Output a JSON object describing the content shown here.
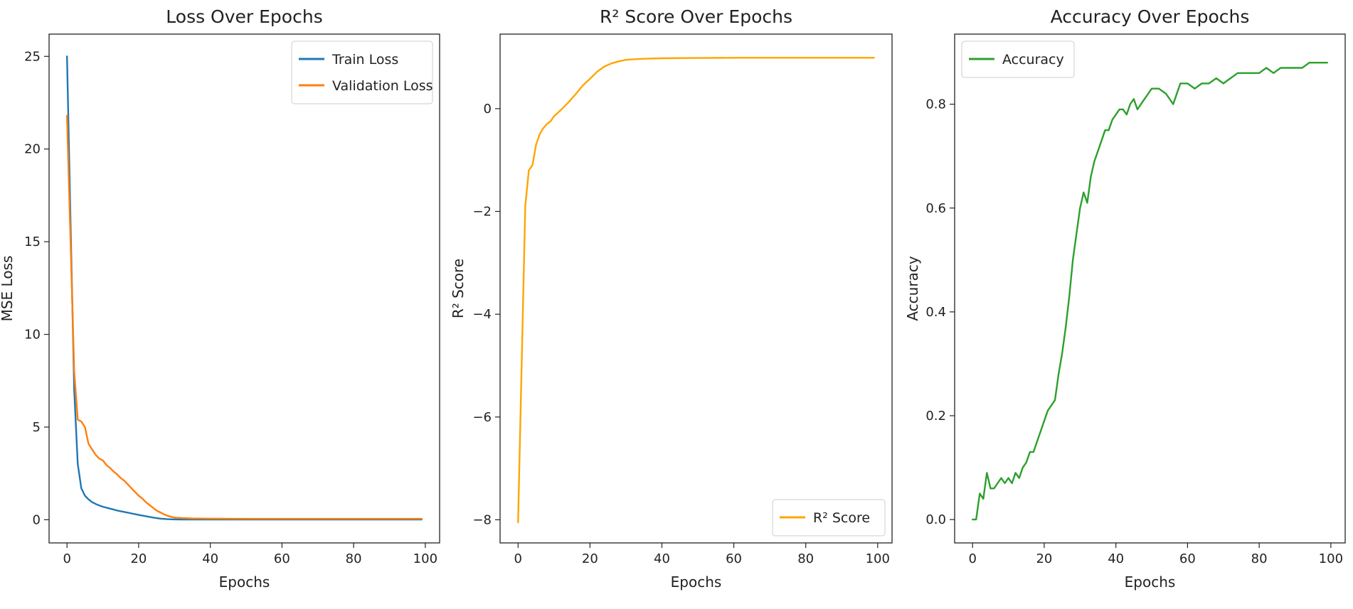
{
  "charts": [
    {
      "title": "Loss Over Epochs",
      "xlabel": "Epochs",
      "ylabel": "MSE Loss",
      "xticks": [
        "0",
        "20",
        "40",
        "60",
        "80",
        "100"
      ],
      "yticks": [
        "0",
        "5",
        "10",
        "15",
        "20",
        "25"
      ],
      "legend": [
        "Train Loss",
        "Validation Loss"
      ]
    },
    {
      "title": "R² Score Over Epochs",
      "xlabel": "Epochs",
      "ylabel": "R² Score",
      "xticks": [
        "0",
        "20",
        "40",
        "60",
        "80",
        "100"
      ],
      "yticks": [
        "0",
        "−2",
        "−4",
        "−6",
        "−8"
      ],
      "legend": [
        "R² Score"
      ]
    },
    {
      "title": "Accuracy Over Epochs",
      "xlabel": "Epochs",
      "ylabel": "Accuracy",
      "xticks": [
        "0",
        "20",
        "40",
        "60",
        "80",
        "100"
      ],
      "yticks": [
        "0.0",
        "0.2",
        "0.4",
        "0.6",
        "0.8"
      ],
      "legend": [
        "Accuracy"
      ]
    }
  ],
  "chart_data": [
    {
      "type": "line",
      "title": "Loss Over Epochs",
      "xlabel": "Epochs",
      "ylabel": "MSE Loss",
      "xlim": [
        -5,
        104
      ],
      "ylim": [
        -1.25,
        26.2
      ],
      "legend_position": "top-right",
      "grid": false,
      "series": [
        {
          "name": "Train Loss",
          "color": "#1f77b4",
          "x": [
            0,
            1,
            2,
            3,
            4,
            5,
            6,
            7,
            8,
            9,
            10,
            12,
            14,
            16,
            18,
            20,
            22,
            24,
            26,
            28,
            30,
            32,
            35,
            40,
            50,
            60,
            70,
            80,
            90,
            99
          ],
          "y": [
            25.0,
            16.0,
            7.0,
            3.0,
            1.7,
            1.3,
            1.1,
            0.95,
            0.85,
            0.77,
            0.7,
            0.6,
            0.5,
            0.42,
            0.34,
            0.26,
            0.19,
            0.12,
            0.06,
            0.03,
            0.02,
            0.01,
            0.01,
            0.01,
            0.01,
            0.01,
            0.01,
            0.01,
            0.01,
            0.01
          ]
        },
        {
          "name": "Validation Loss",
          "color": "#ff7f0e",
          "x": [
            0,
            1,
            2,
            3,
            4,
            5,
            6,
            7,
            8,
            9,
            10,
            11,
            12,
            13,
            14,
            15,
            16,
            17,
            18,
            19,
            20,
            21,
            22,
            23,
            24,
            25,
            26,
            27,
            28,
            29,
            30,
            32,
            35,
            40,
            50,
            60,
            70,
            80,
            90,
            99
          ],
          "y": [
            21.8,
            15.0,
            8.0,
            5.4,
            5.3,
            5.0,
            4.1,
            3.8,
            3.5,
            3.3,
            3.2,
            2.95,
            2.8,
            2.6,
            2.45,
            2.25,
            2.1,
            1.9,
            1.7,
            1.5,
            1.3,
            1.15,
            0.95,
            0.8,
            0.65,
            0.5,
            0.4,
            0.3,
            0.22,
            0.16,
            0.12,
            0.09,
            0.07,
            0.06,
            0.05,
            0.05,
            0.05,
            0.05,
            0.05,
            0.05
          ]
        }
      ]
    },
    {
      "type": "line",
      "title": "R² Score Over Epochs",
      "xlabel": "Epochs",
      "ylabel": "R² Score",
      "xlim": [
        -5,
        104
      ],
      "ylim": [
        -8.45,
        1.45
      ],
      "legend_position": "bottom-right",
      "grid": false,
      "series": [
        {
          "name": "R² Score",
          "color": "#ffa500",
          "x": [
            0,
            1,
            2,
            3,
            4,
            5,
            6,
            7,
            8,
            9,
            10,
            12,
            14,
            16,
            18,
            20,
            22,
            24,
            26,
            28,
            30,
            32,
            35,
            40,
            50,
            60,
            70,
            80,
            90,
            99
          ],
          "y": [
            -8.05,
            -5.0,
            -1.9,
            -1.2,
            -1.1,
            -0.7,
            -0.5,
            -0.38,
            -0.3,
            -0.25,
            -0.15,
            -0.02,
            0.12,
            0.28,
            0.45,
            0.58,
            0.72,
            0.82,
            0.88,
            0.92,
            0.95,
            0.96,
            0.97,
            0.98,
            0.985,
            0.99,
            0.99,
            0.99,
            0.99,
            0.99
          ]
        }
      ]
    },
    {
      "type": "line",
      "title": "Accuracy Over Epochs",
      "xlabel": "Epochs",
      "ylabel": "Accuracy",
      "xlim": [
        -5,
        104
      ],
      "ylim": [
        -0.045,
        0.935
      ],
      "legend_position": "top-left",
      "grid": false,
      "series": [
        {
          "name": "Accuracy",
          "color": "#2ca02c",
          "x": [
            0,
            1,
            2,
            3,
            4,
            5,
            6,
            7,
            8,
            9,
            10,
            11,
            12,
            13,
            14,
            15,
            16,
            17,
            18,
            19,
            20,
            21,
            22,
            23,
            24,
            25,
            26,
            27,
            28,
            29,
            30,
            31,
            32,
            33,
            34,
            35,
            36,
            37,
            38,
            39,
            40,
            41,
            42,
            43,
            44,
            45,
            46,
            47,
            48,
            49,
            50,
            52,
            54,
            56,
            58,
            60,
            62,
            64,
            66,
            68,
            70,
            72,
            74,
            76,
            78,
            80,
            82,
            84,
            86,
            88,
            90,
            92,
            94,
            96,
            98,
            99
          ],
          "y": [
            0.0,
            0.0,
            0.05,
            0.04,
            0.09,
            0.06,
            0.06,
            0.07,
            0.08,
            0.07,
            0.08,
            0.07,
            0.09,
            0.08,
            0.1,
            0.11,
            0.13,
            0.13,
            0.15,
            0.17,
            0.19,
            0.21,
            0.22,
            0.23,
            0.28,
            0.32,
            0.37,
            0.43,
            0.5,
            0.55,
            0.6,
            0.63,
            0.61,
            0.66,
            0.69,
            0.71,
            0.73,
            0.75,
            0.75,
            0.77,
            0.78,
            0.79,
            0.79,
            0.78,
            0.8,
            0.81,
            0.79,
            0.8,
            0.81,
            0.82,
            0.83,
            0.83,
            0.82,
            0.8,
            0.84,
            0.84,
            0.83,
            0.84,
            0.84,
            0.85,
            0.84,
            0.85,
            0.86,
            0.86,
            0.86,
            0.86,
            0.87,
            0.86,
            0.87,
            0.87,
            0.87,
            0.87,
            0.88,
            0.88,
            0.88,
            0.88
          ]
        }
      ]
    }
  ]
}
